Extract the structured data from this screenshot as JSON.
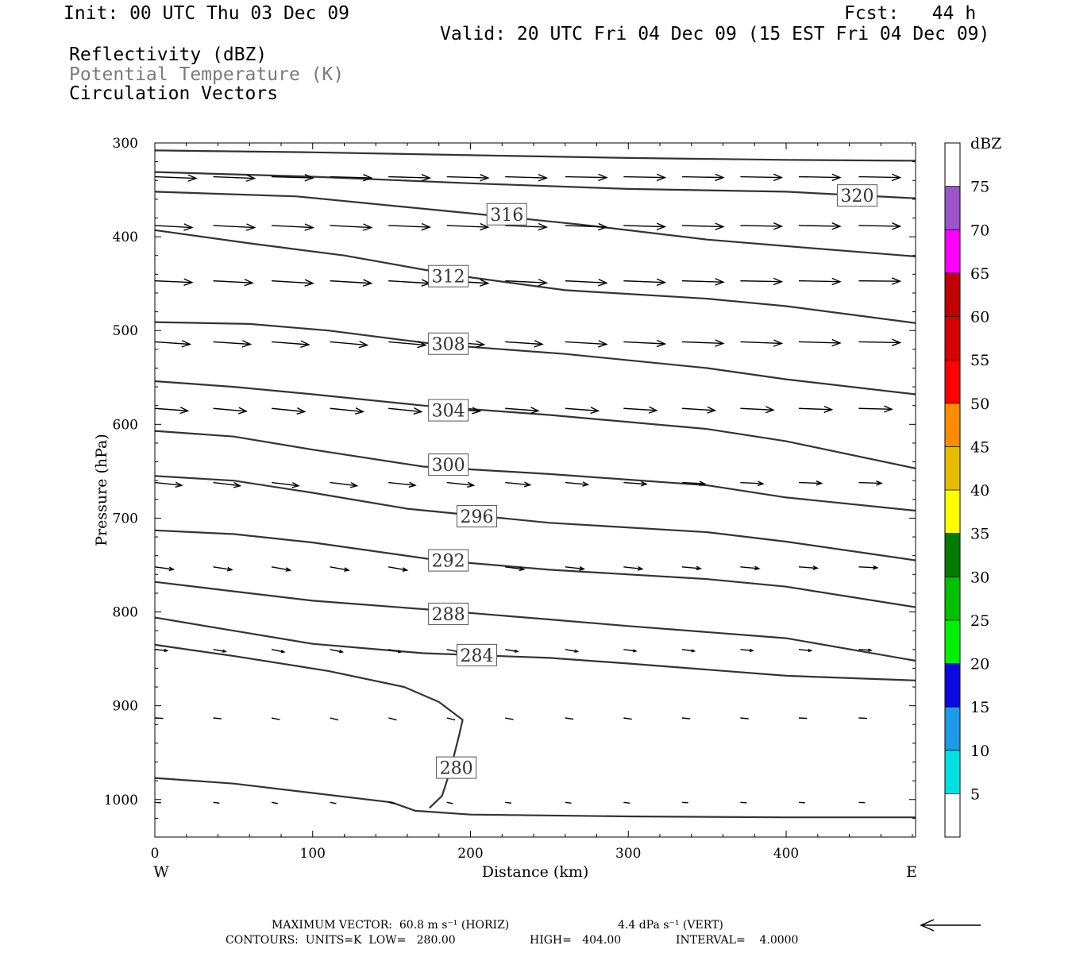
{
  "header": {
    "init": "Init: 00 UTC Thu 03 Dec 09",
    "fcst": "Fcst:   44 h",
    "valid": "Valid: 20 UTC Fri 04 Dec 09 (15 EST Fri 04 Dec 09)",
    "field1": "Reflectivity (dBZ)",
    "field2": "Potential Temperature (K)",
    "field3": "Circulation Vectors"
  },
  "colors": {
    "contour": "#333333",
    "field2_text": "#7a7a7a"
  },
  "chart_data": {
    "type": "cross-section",
    "xlabel": "Distance (km)",
    "ylabel": "Pressure (hPa)",
    "xlim": [
      0,
      482
    ],
    "ylim": [
      300,
      1040
    ],
    "y_inverted": true,
    "xticks": [
      0,
      100,
      200,
      300,
      400
    ],
    "yticks": [
      300,
      400,
      500,
      600,
      700,
      800,
      900,
      1000
    ],
    "x_end_labels": {
      "left": "W",
      "right": "E"
    },
    "theta_contours": [
      {
        "theta": 280,
        "label": "280",
        "label_pos": [
          191,
          966
        ],
        "points": [
          [
            0,
            977
          ],
          [
            50,
            983
          ],
          [
            100,
            993
          ],
          [
            150,
            1003
          ],
          [
            165,
            1012
          ],
          [
            200,
            1016
          ],
          [
            300,
            1018
          ],
          [
            400,
            1019
          ],
          [
            482,
            1019
          ]
        ]
      },
      {
        "theta": 280,
        "label": "",
        "label_pos": null,
        "points": [
          [
            174,
            1009
          ],
          [
            182,
            996
          ],
          [
            187,
            970
          ],
          [
            193,
            930
          ],
          [
            195,
            915
          ],
          [
            180,
            896
          ],
          [
            158,
            880
          ],
          [
            110,
            863
          ],
          [
            50,
            847
          ],
          [
            0,
            835
          ]
        ]
      },
      {
        "theta": 284,
        "label": "284",
        "label_pos": [
          204,
          846
        ],
        "points": [
          [
            0,
            806
          ],
          [
            50,
            820
          ],
          [
            100,
            834
          ],
          [
            170,
            844
          ],
          [
            250,
            849
          ],
          [
            300,
            855
          ],
          [
            400,
            868
          ],
          [
            482,
            873
          ]
        ]
      },
      {
        "theta": 288,
        "label": "288",
        "label_pos": [
          186,
          802
        ],
        "points": [
          [
            0,
            768
          ],
          [
            50,
            778
          ],
          [
            100,
            788
          ],
          [
            170,
            797
          ],
          [
            250,
            808
          ],
          [
            300,
            815
          ],
          [
            400,
            828
          ],
          [
            482,
            852
          ]
        ]
      },
      {
        "theta": 292,
        "label": "292",
        "label_pos": [
          186,
          745
        ],
        "points": [
          [
            0,
            713
          ],
          [
            50,
            717
          ],
          [
            100,
            726
          ],
          [
            180,
            745
          ],
          [
            250,
            755
          ],
          [
            350,
            765
          ],
          [
            400,
            773
          ],
          [
            482,
            795
          ]
        ]
      },
      {
        "theta": 296,
        "label": "296",
        "label_pos": [
          204,
          698
        ],
        "points": [
          [
            0,
            655
          ],
          [
            50,
            660
          ],
          [
            100,
            673
          ],
          [
            160,
            690
          ],
          [
            250,
            705
          ],
          [
            350,
            715
          ],
          [
            400,
            725
          ],
          [
            482,
            745
          ]
        ]
      },
      {
        "theta": 300,
        "label": "300",
        "label_pos": [
          186,
          643
        ],
        "points": [
          [
            0,
            607
          ],
          [
            50,
            613
          ],
          [
            100,
            627
          ],
          [
            170,
            645
          ],
          [
            250,
            653
          ],
          [
            350,
            665
          ],
          [
            400,
            678
          ],
          [
            482,
            692
          ]
        ]
      },
      {
        "theta": 304,
        "label": "304",
        "label_pos": [
          186,
          585
        ],
        "points": [
          [
            0,
            554
          ],
          [
            50,
            560
          ],
          [
            100,
            568
          ],
          [
            170,
            580
          ],
          [
            250,
            590
          ],
          [
            350,
            605
          ],
          [
            400,
            618
          ],
          [
            482,
            647
          ]
        ]
      },
      {
        "theta": 308,
        "label": "308",
        "label_pos": [
          186,
          514
        ],
        "points": [
          [
            0,
            491
          ],
          [
            60,
            493
          ],
          [
            110,
            500
          ],
          [
            180,
            515
          ],
          [
            260,
            525
          ],
          [
            350,
            540
          ],
          [
            400,
            552
          ],
          [
            482,
            568
          ]
        ]
      },
      {
        "theta": 312,
        "label": "312",
        "label_pos": [
          186,
          442
        ],
        "points": [
          [
            0,
            393
          ],
          [
            60,
            407
          ],
          [
            120,
            420
          ],
          [
            190,
            441
          ],
          [
            260,
            457
          ],
          [
            350,
            466
          ],
          [
            400,
            474
          ],
          [
            482,
            492
          ]
        ]
      },
      {
        "theta": 316,
        "label": "316",
        "label_pos": [
          223,
          376
        ],
        "points": [
          [
            0,
            352
          ],
          [
            90,
            357
          ],
          [
            200,
            375
          ],
          [
            270,
            387
          ],
          [
            350,
            403
          ],
          [
            400,
            410
          ],
          [
            482,
            421
          ]
        ]
      },
      {
        "theta": 320,
        "label": "320",
        "label_pos": [
          445,
          356
        ],
        "points": [
          [
            0,
            331
          ],
          [
            100,
            336
          ],
          [
            200,
            343
          ],
          [
            300,
            349
          ],
          [
            400,
            352
          ],
          [
            482,
            359
          ]
        ]
      },
      {
        "theta": 324,
        "label": "",
        "label_pos": null,
        "points": [
          [
            0,
            308
          ],
          [
            100,
            310
          ],
          [
            200,
            313
          ],
          [
            300,
            316
          ],
          [
            400,
            318
          ],
          [
            482,
            319
          ]
        ]
      }
    ],
    "vector_rows": [
      {
        "p": 336,
        "x": [
          0,
          37,
          74,
          111,
          148,
          185,
          222,
          260,
          297,
          334,
          371,
          408,
          446
        ],
        "u": [
          1,
          1,
          1,
          1,
          1,
          1,
          1,
          1,
          1,
          1,
          1,
          1,
          1
        ],
        "w": [
          0.04,
          0.04,
          0.03,
          0.03,
          0.03,
          0.03,
          0.03,
          0.02,
          0.02,
          0.02,
          0.02,
          0.02,
          0.02
        ]
      },
      {
        "p": 388,
        "x": [
          0,
          37,
          74,
          111,
          148,
          185,
          222,
          260,
          297,
          334,
          371,
          408,
          446
        ],
        "u": [
          0.9,
          1,
          1,
          1,
          1,
          1,
          1,
          1,
          1,
          1,
          1,
          1,
          1
        ],
        "w": [
          0.05,
          0.05,
          0.05,
          0.05,
          0.04,
          0.04,
          0.04,
          0.04,
          0.03,
          0.03,
          0.02,
          0.02,
          0.02
        ]
      },
      {
        "p": 447,
        "x": [
          0,
          37,
          74,
          111,
          148,
          185,
          222,
          260,
          297,
          334,
          371,
          408,
          446
        ],
        "u": [
          0.9,
          0.95,
          1,
          1,
          1,
          1,
          1,
          1,
          1,
          1,
          1,
          1,
          1
        ],
        "w": [
          0.04,
          0.05,
          0.06,
          0.06,
          0.06,
          0.06,
          0.05,
          0.05,
          0.04,
          0.03,
          0.02,
          0.02,
          0.01
        ]
      },
      {
        "p": 512,
        "x": [
          0,
          37,
          74,
          111,
          148,
          185,
          222,
          260,
          297,
          334,
          371,
          408,
          446
        ],
        "u": [
          0.85,
          0.9,
          0.9,
          0.9,
          0.9,
          0.9,
          0.9,
          1,
          1,
          1,
          1,
          1,
          1
        ],
        "w": [
          0.06,
          0.06,
          0.07,
          0.08,
          0.08,
          0.07,
          0.06,
          0.06,
          0.05,
          0.04,
          0.04,
          0.03,
          0.02
        ]
      },
      {
        "p": 583,
        "x": [
          0,
          37,
          74,
          111,
          148,
          185,
          222,
          260,
          297,
          334,
          371,
          408,
          446
        ],
        "u": [
          0.8,
          0.8,
          0.8,
          0.8,
          0.8,
          0.8,
          0.8,
          0.8,
          0.8,
          0.8,
          0.8,
          0.8,
          0.8
        ],
        "w": [
          0.06,
          0.07,
          0.08,
          0.08,
          0.08,
          0.07,
          0.06,
          0.06,
          0.05,
          0.05,
          0.04,
          0.03,
          0.02
        ]
      },
      {
        "p": 662,
        "x": [
          0,
          37,
          74,
          111,
          148,
          185,
          222,
          260,
          297,
          334,
          371,
          408,
          446
        ],
        "u": [
          0.65,
          0.65,
          0.65,
          0.65,
          0.65,
          0.65,
          0.6,
          0.55,
          0.55,
          0.55,
          0.55,
          0.55,
          0.55
        ],
        "w": [
          0.07,
          0.08,
          0.08,
          0.08,
          0.07,
          0.07,
          0.06,
          0.05,
          0.04,
          0.03,
          0.03,
          0.02,
          0.02
        ]
      },
      {
        "p": 752,
        "x": [
          0,
          37,
          74,
          111,
          148,
          185,
          222,
          260,
          297,
          334,
          371,
          408,
          446
        ],
        "u": [
          0.45,
          0.45,
          0.45,
          0.45,
          0.45,
          0.45,
          0.45,
          0.45,
          0.45,
          0.45,
          0.45,
          0.45,
          0.45
        ],
        "w": [
          0.06,
          0.07,
          0.08,
          0.08,
          0.08,
          0.07,
          0.06,
          0.05,
          0.05,
          0.04,
          0.04,
          0.03,
          0.02
        ]
      },
      {
        "p": 840,
        "x": [
          0,
          37,
          74,
          111,
          148,
          185,
          222,
          260,
          297,
          334,
          371,
          408,
          446
        ],
        "u": [
          0.3,
          0.3,
          0.3,
          0.3,
          0.3,
          0.3,
          0.3,
          0.3,
          0.3,
          0.3,
          0.3,
          0.3,
          0.3
        ],
        "w": [
          0.03,
          0.05,
          0.06,
          0.06,
          0.06,
          0.06,
          0.05,
          0.05,
          0.04,
          0.04,
          0.03,
          0.03,
          0.02
        ]
      },
      {
        "p": 913,
        "x": [
          0,
          37,
          74,
          111,
          148,
          185,
          222,
          260,
          297,
          334,
          371,
          408,
          446
        ],
        "u": [
          0.2,
          0.2,
          0.2,
          0.2,
          0.2,
          0.2,
          0.2,
          0.2,
          0.2,
          0.2,
          0.2,
          0.2,
          0.2
        ],
        "w": [
          0.01,
          0.02,
          0.04,
          0.05,
          0.05,
          0.05,
          0.04,
          0.03,
          0.03,
          0.02,
          0.02,
          0.01,
          0.01
        ]
      },
      {
        "p": 1003,
        "x": [
          0,
          37,
          74,
          111,
          148,
          185,
          222,
          260,
          297,
          334,
          371,
          408,
          446
        ],
        "u": [
          0.15,
          0.15,
          0.15,
          0.15,
          0.15,
          0.15,
          0.15,
          0.15,
          0.15,
          0.15,
          0.15,
          0.15,
          0.15
        ],
        "w": [
          0.01,
          0.02,
          0.03,
          0.03,
          0.03,
          0.03,
          0.02,
          0.02,
          0.02,
          0.01,
          0.01,
          0.01,
          0.01
        ]
      }
    ],
    "colorbar": {
      "title": "dBZ",
      "levels": [
        {
          "label": "5",
          "color": "#00e0e0"
        },
        {
          "label": "10",
          "color": "#1e9be8"
        },
        {
          "label": "15",
          "color": "#0a0ae0"
        },
        {
          "label": "20",
          "color": "#00f000"
        },
        {
          "label": "25",
          "color": "#00c000"
        },
        {
          "label": "30",
          "color": "#007a00"
        },
        {
          "label": "35",
          "color": "#ffff00"
        },
        {
          "label": "40",
          "color": "#e6bc00"
        },
        {
          "label": "45",
          "color": "#ff8c00"
        },
        {
          "label": "50",
          "color": "#ff0000"
        },
        {
          "label": "55",
          "color": "#d60000"
        },
        {
          "label": "60",
          "color": "#c00000"
        },
        {
          "label": "65",
          "color": "#ff00ff"
        },
        {
          "label": "70",
          "color": "#9b55c9"
        },
        {
          "label": "75",
          "color": ""
        }
      ]
    }
  },
  "footer": {
    "line1_left": "MAXIMUM VECTOR:  60.8 m s⁻¹ (HORIZ)",
    "line1_right": "4.4 dPa s⁻¹ (VERT)",
    "line2_a": "CONTOURS:  UNITS=K  LOW=   280.00",
    "line2_b": "HIGH=   404.00",
    "line2_c": "INTERVAL=    4.0000"
  }
}
